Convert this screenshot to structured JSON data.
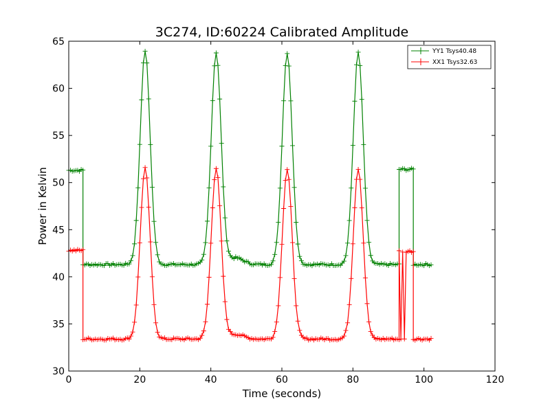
{
  "chart_data": {
    "type": "line",
    "title": "3C274, ID:60224 Calibrated Amplitude",
    "xlabel": "Time (seconds)",
    "ylabel": "Power in Kelvin",
    "xlim": [
      0,
      120
    ],
    "ylim": [
      30,
      65
    ],
    "xticks": [
      0,
      20,
      40,
      60,
      80,
      100,
      120
    ],
    "yticks": [
      30,
      35,
      40,
      45,
      50,
      55,
      60,
      65
    ],
    "grid": false,
    "legend_position": "top-right",
    "marker": "plus",
    "sample_step_seconds": 0.5,
    "series": [
      {
        "name": "YY1 Tsys40.48",
        "color": "#008000",
        "segments": [
          {
            "x_range": [
              0,
              4
            ],
            "level": 51.3
          },
          {
            "x_range": [
              4,
              93
            ],
            "level": 41.3,
            "peaks": [
              {
                "x": 21.5,
                "value": 64.0,
                "width": 1.4
              },
              {
                "x": 41.5,
                "value": 63.8,
                "width": 1.4
              },
              {
                "x": 47.0,
                "value": 42.0,
                "width": 2.2
              },
              {
                "x": 61.5,
                "value": 63.8,
                "width": 1.4
              },
              {
                "x": 81.5,
                "value": 63.8,
                "width": 1.4
              }
            ]
          },
          {
            "x_range": [
              93,
              97
            ],
            "level": 51.4
          },
          {
            "x_range": [
              97,
              102
            ],
            "level": 41.3
          }
        ]
      },
      {
        "name": "XX1 Tsys32.63",
        "color": "#ff0000",
        "segments": [
          {
            "x_range": [
              0,
              4
            ],
            "level": 42.8
          },
          {
            "x_range": [
              4,
              93
            ],
            "level": 33.4,
            "peaks": [
              {
                "x": 21.5,
                "value": 51.5,
                "width": 1.4
              },
              {
                "x": 41.5,
                "value": 51.5,
                "width": 1.4
              },
              {
                "x": 47.0,
                "value": 33.9,
                "width": 2.2
              },
              {
                "x": 61.5,
                "value": 51.4,
                "width": 1.4
              },
              {
                "x": 81.5,
                "value": 51.5,
                "width": 1.4
              }
            ]
          },
          {
            "x_range": [
              93,
              97
            ],
            "level": 42.7,
            "dips": [
              {
                "x": 93.5,
                "value": 33.4
              },
              {
                "x": 94.5,
                "value": 33.4
              }
            ]
          },
          {
            "x_range": [
              97,
              102
            ],
            "level": 33.4
          }
        ]
      }
    ]
  }
}
